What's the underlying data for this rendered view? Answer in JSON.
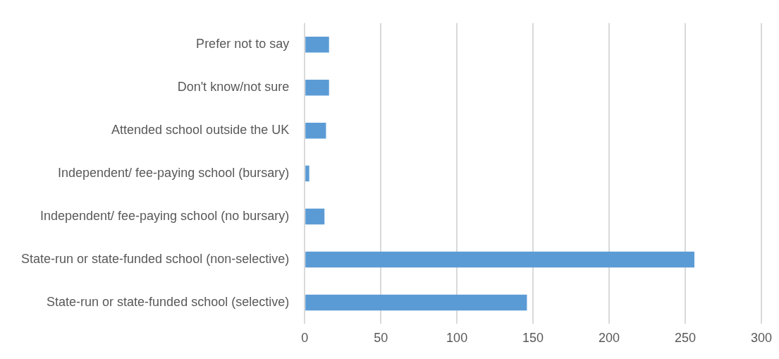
{
  "chart_data": {
    "type": "bar",
    "orientation": "horizontal",
    "categories": [
      "Prefer not to say",
      "Don't know/not sure",
      "Attended school outside the UK",
      "Independent/ fee-paying school (bursary)",
      "Independent/ fee-paying school (no bursary)",
      "State-run or state-funded school (non-selective)",
      "State-run or state-funded school (selective)"
    ],
    "values": [
      16,
      16,
      14,
      3,
      13,
      256,
      146
    ],
    "color": "#5b9bd5",
    "xlim": [
      0,
      300
    ],
    "xticks": [
      0,
      50,
      100,
      150,
      200,
      250,
      300
    ],
    "grid": "x",
    "legend": false
  }
}
